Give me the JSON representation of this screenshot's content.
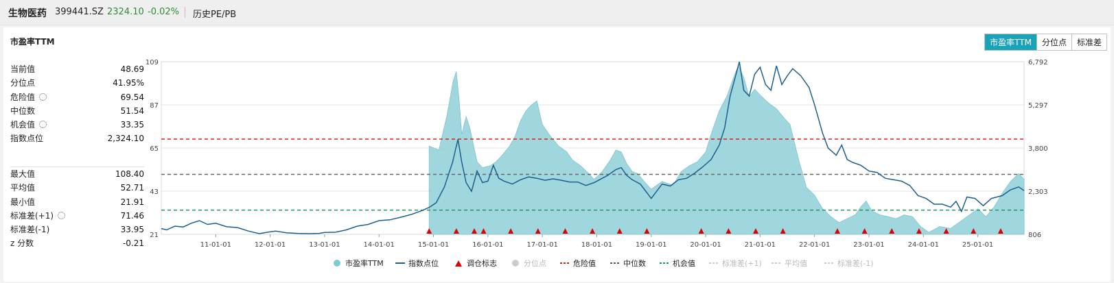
{
  "header": {
    "name": "生物医药",
    "code": "399441.SZ",
    "price": "2324.10",
    "change": "-0.02%",
    "tab": "历史PE/PB"
  },
  "panel": {
    "title": "市盈率TTM",
    "buttons": [
      "市盈率TTM",
      "分位点",
      "标准差"
    ],
    "active_button": "市盈率TTM"
  },
  "stats_top": [
    {
      "label": "当前值",
      "value": "48.69"
    },
    {
      "label": "分位点",
      "value": "41.95%"
    },
    {
      "label": "危险值",
      "value": "69.54",
      "gear": true
    },
    {
      "label": "中位数",
      "value": "51.54"
    },
    {
      "label": "机会值",
      "value": "33.35",
      "gear": true
    },
    {
      "label": "指数点位",
      "value": "2,324.10"
    }
  ],
  "stats_bottom": [
    {
      "label": "最大值",
      "value": "108.40"
    },
    {
      "label": "平均值",
      "value": "52.71"
    },
    {
      "label": "最小值",
      "value": "21.91"
    },
    {
      "label": "标准差(+1)",
      "value": "71.46",
      "gear": true
    },
    {
      "label": "标准差(-1)",
      "value": "33.95"
    },
    {
      "label": "z 分数",
      "value": "-0.21"
    }
  ],
  "legend": [
    {
      "label": "市盈率TTM",
      "marker": "dot",
      "color": "#7ecbd3",
      "dim": false
    },
    {
      "label": "指数点位",
      "marker": "line",
      "color": "#1d5f8c",
      "dim": false
    },
    {
      "label": "调仓标志",
      "marker": "triangle",
      "color": "#e00000",
      "dim": false
    },
    {
      "label": "分位点",
      "marker": "dot",
      "color": "#cccccc",
      "dim": true
    },
    {
      "label": "危险值",
      "marker": "dash",
      "color": "#d62020",
      "dim": false
    },
    {
      "label": "中位数",
      "marker": "dash",
      "color": "#555555",
      "dim": false
    },
    {
      "label": "机会值",
      "marker": "dash",
      "color": "#1a9a5a",
      "dim": false
    },
    {
      "label": "标准差(+1)",
      "marker": "dash",
      "color": "#cccccc",
      "dim": true
    },
    {
      "label": "平均值",
      "marker": "dash",
      "color": "#cccccc",
      "dim": true
    },
    {
      "label": "标准差(-1)",
      "marker": "dash",
      "color": "#cccccc",
      "dim": true
    }
  ],
  "chart_data": {
    "type": "area",
    "x_ticks": [
      "11-01-01",
      "12-01-01",
      "13-01-01",
      "14-01-01",
      "15-01-01",
      "16-01-01",
      "17-01-01",
      "18-01-01",
      "19-01-01",
      "20-01-01",
      "21-01-01",
      "22-01-01",
      "23-01-01",
      "24-01-01",
      "25-01-01"
    ],
    "x_range": [
      2010.0,
      2025.85
    ],
    "y_left": {
      "ticks": [
        "21",
        "43",
        "65",
        "87",
        "109"
      ],
      "range": [
        21,
        109
      ]
    },
    "y_right": {
      "ticks": [
        "806",
        "2,303",
        "3,800",
        "5,297",
        "6,792"
      ],
      "range": [
        806,
        6792
      ]
    },
    "reference_lines": [
      {
        "name": "危险值",
        "value": 69.54,
        "color": "#d62020"
      },
      {
        "name": "中位数",
        "value": 51.54,
        "color": "#666666"
      },
      {
        "name": "机会值",
        "value": 33.35,
        "color": "#1a9a5a"
      }
    ],
    "pe_series": [
      [
        2014.92,
        21
      ],
      [
        2014.92,
        66
      ],
      [
        2015.1,
        64
      ],
      [
        2015.25,
        82
      ],
      [
        2015.36,
        99
      ],
      [
        2015.42,
        104
      ],
      [
        2015.47,
        90
      ],
      [
        2015.52,
        72
      ],
      [
        2015.6,
        81
      ],
      [
        2015.67,
        75
      ],
      [
        2015.8,
        58
      ],
      [
        2015.9,
        55
      ],
      [
        2016.05,
        56
      ],
      [
        2016.15,
        58
      ],
      [
        2016.25,
        61
      ],
      [
        2016.4,
        66
      ],
      [
        2016.5,
        71
      ],
      [
        2016.6,
        79
      ],
      [
        2016.7,
        84
      ],
      [
        2016.8,
        87
      ],
      [
        2016.9,
        89
      ],
      [
        2017.0,
        77
      ],
      [
        2017.15,
        71
      ],
      [
        2017.3,
        66
      ],
      [
        2017.45,
        63
      ],
      [
        2017.55,
        59
      ],
      [
        2017.7,
        56
      ],
      [
        2017.85,
        52
      ],
      [
        2017.95,
        49
      ],
      [
        2018.1,
        53
      ],
      [
        2018.25,
        59
      ],
      [
        2018.35,
        64
      ],
      [
        2018.45,
        63
      ],
      [
        2018.55,
        57
      ],
      [
        2018.65,
        53
      ],
      [
        2018.75,
        52
      ],
      [
        2018.9,
        47
      ],
      [
        2019.0,
        44
      ],
      [
        2019.2,
        48
      ],
      [
        2019.4,
        46
      ],
      [
        2019.55,
        53
      ],
      [
        2019.7,
        56
      ],
      [
        2019.85,
        58
      ],
      [
        2020.0,
        63
      ],
      [
        2020.1,
        72
      ],
      [
        2020.25,
        84
      ],
      [
        2020.4,
        92
      ],
      [
        2020.5,
        100
      ],
      [
        2020.6,
        107
      ],
      [
        2020.7,
        101
      ],
      [
        2020.8,
        91
      ],
      [
        2020.9,
        95
      ],
      [
        2021.0,
        92
      ],
      [
        2021.15,
        88
      ],
      [
        2021.3,
        85
      ],
      [
        2021.45,
        80
      ],
      [
        2021.55,
        77
      ],
      [
        2021.7,
        60
      ],
      [
        2021.85,
        45
      ],
      [
        2022.0,
        41
      ],
      [
        2022.15,
        34
      ],
      [
        2022.3,
        30
      ],
      [
        2022.45,
        27
      ],
      [
        2022.6,
        29
      ],
      [
        2022.75,
        31
      ],
      [
        2022.85,
        35
      ],
      [
        2022.95,
        38
      ],
      [
        2023.05,
        33
      ],
      [
        2023.2,
        31
      ],
      [
        2023.35,
        30
      ],
      [
        2023.5,
        29
      ],
      [
        2023.65,
        31
      ],
      [
        2023.8,
        30
      ],
      [
        2023.95,
        25
      ],
      [
        2024.1,
        22
      ],
      [
        2024.3,
        25
      ],
      [
        2024.5,
        24
      ],
      [
        2024.7,
        28
      ],
      [
        2024.85,
        31
      ],
      [
        2025.0,
        34
      ],
      [
        2025.15,
        30
      ],
      [
        2025.3,
        35
      ],
      [
        2025.45,
        42
      ],
      [
        2025.6,
        48
      ],
      [
        2025.75,
        52
      ],
      [
        2025.85,
        49
      ],
      [
        2025.85,
        21
      ]
    ],
    "index_series": [
      [
        2010.0,
        1005
      ],
      [
        2010.1,
        960
      ],
      [
        2010.25,
        1090
      ],
      [
        2010.4,
        1060
      ],
      [
        2010.55,
        1190
      ],
      [
        2010.7,
        1280
      ],
      [
        2010.85,
        1150
      ],
      [
        2011.0,
        1190
      ],
      [
        2011.2,
        1070
      ],
      [
        2011.4,
        1040
      ],
      [
        2011.6,
        920
      ],
      [
        2011.8,
        830
      ],
      [
        2011.95,
        880
      ],
      [
        2012.1,
        920
      ],
      [
        2012.3,
        860
      ],
      [
        2012.5,
        840
      ],
      [
        2012.7,
        830
      ],
      [
        2012.9,
        840
      ],
      [
        2013.0,
        870
      ],
      [
        2013.2,
        880
      ],
      [
        2013.4,
        960
      ],
      [
        2013.6,
        1090
      ],
      [
        2013.8,
        1150
      ],
      [
        2014.0,
        1280
      ],
      [
        2014.2,
        1310
      ],
      [
        2014.4,
        1400
      ],
      [
        2014.6,
        1500
      ],
      [
        2014.8,
        1640
      ],
      [
        2014.92,
        1740
      ],
      [
        2015.05,
        1900
      ],
      [
        2015.2,
        2450
      ],
      [
        2015.35,
        3300
      ],
      [
        2015.45,
        4100
      ],
      [
        2015.52,
        3300
      ],
      [
        2015.6,
        2600
      ],
      [
        2015.7,
        2300
      ],
      [
        2015.8,
        3000
      ],
      [
        2015.9,
        2600
      ],
      [
        2016.0,
        2650
      ],
      [
        2016.1,
        3200
      ],
      [
        2016.2,
        2750
      ],
      [
        2016.3,
        2650
      ],
      [
        2016.45,
        2550
      ],
      [
        2016.6,
        2700
      ],
      [
        2016.75,
        2800
      ],
      [
        2016.9,
        2750
      ],
      [
        2017.05,
        2680
      ],
      [
        2017.2,
        2730
      ],
      [
        2017.35,
        2680
      ],
      [
        2017.5,
        2620
      ],
      [
        2017.65,
        2620
      ],
      [
        2017.8,
        2500
      ],
      [
        2017.95,
        2600
      ],
      [
        2018.1,
        2750
      ],
      [
        2018.2,
        2850
      ],
      [
        2018.35,
        3050
      ],
      [
        2018.45,
        3120
      ],
      [
        2018.55,
        2850
      ],
      [
        2018.65,
        2700
      ],
      [
        2018.8,
        2550
      ],
      [
        2019.0,
        2050
      ],
      [
        2019.2,
        2550
      ],
      [
        2019.35,
        2480
      ],
      [
        2019.5,
        2700
      ],
      [
        2019.65,
        2750
      ],
      [
        2019.8,
        2930
      ],
      [
        2019.95,
        3150
      ],
      [
        2020.1,
        3400
      ],
      [
        2020.25,
        3900
      ],
      [
        2020.35,
        4500
      ],
      [
        2020.45,
        5600
      ],
      [
        2020.55,
        6300
      ],
      [
        2020.62,
        6790
      ],
      [
        2020.7,
        5800
      ],
      [
        2020.8,
        5600
      ],
      [
        2020.9,
        6350
      ],
      [
        2021.0,
        6600
      ],
      [
        2021.1,
        6000
      ],
      [
        2021.2,
        5800
      ],
      [
        2021.3,
        6650
      ],
      [
        2021.4,
        6000
      ],
      [
        2021.5,
        6300
      ],
      [
        2021.6,
        6550
      ],
      [
        2021.75,
        6300
      ],
      [
        2021.9,
        5900
      ],
      [
        2022.0,
        5300
      ],
      [
        2022.15,
        4300
      ],
      [
        2022.25,
        3800
      ],
      [
        2022.4,
        3550
      ],
      [
        2022.5,
        3900
      ],
      [
        2022.6,
        3400
      ],
      [
        2022.7,
        3300
      ],
      [
        2022.85,
        3200
      ],
      [
        2023.0,
        3000
      ],
      [
        2023.15,
        2950
      ],
      [
        2023.3,
        2750
      ],
      [
        2023.45,
        2700
      ],
      [
        2023.6,
        2650
      ],
      [
        2023.75,
        2500
      ],
      [
        2023.9,
        2150
      ],
      [
        2024.05,
        2050
      ],
      [
        2024.2,
        1850
      ],
      [
        2024.35,
        1850
      ],
      [
        2024.5,
        1750
      ],
      [
        2024.6,
        1950
      ],
      [
        2024.7,
        1600
      ],
      [
        2024.8,
        2100
      ],
      [
        2024.95,
        2050
      ],
      [
        2025.1,
        1800
      ],
      [
        2025.25,
        2050
      ],
      [
        2025.45,
        2150
      ],
      [
        2025.6,
        2350
      ],
      [
        2025.75,
        2450
      ],
      [
        2025.85,
        2324
      ]
    ],
    "rebalance_markers": [
      2014.92,
      2015.42,
      2015.75,
      2015.92,
      2016.42,
      2016.92,
      2017.42,
      2017.92,
      2018.42,
      2018.92,
      2019.92,
      2020.42,
      2020.92,
      2021.42,
      2022.42,
      2022.92,
      2023.42,
      2023.92,
      2024.42,
      2024.92,
      2025.42
    ]
  }
}
